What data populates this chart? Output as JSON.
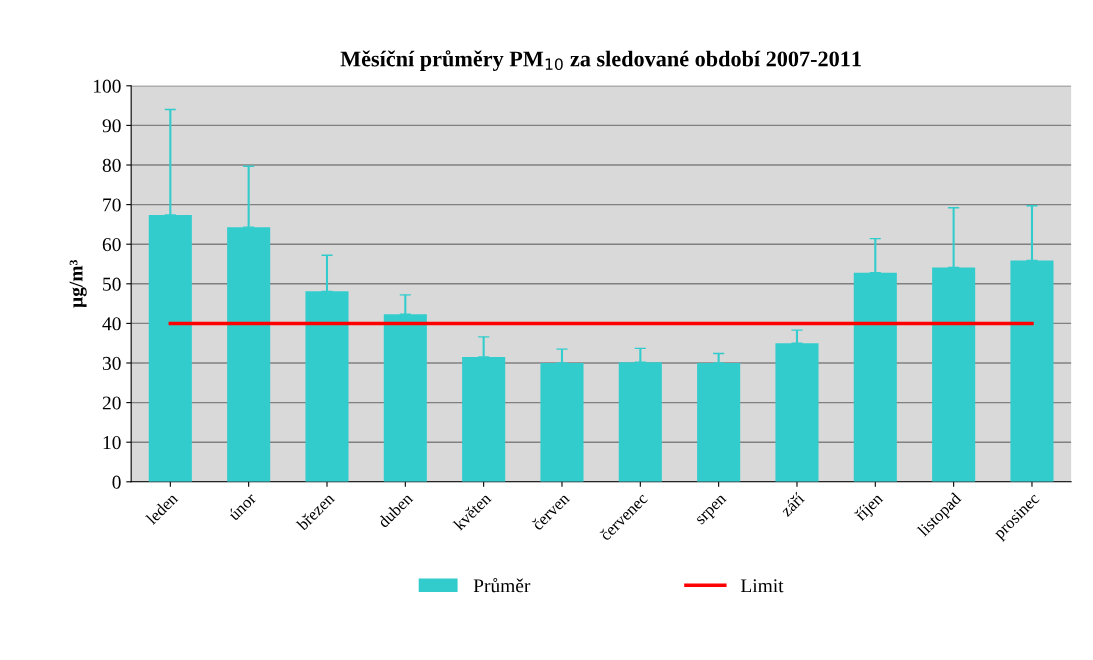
{
  "chart_data": {
    "type": "bar",
    "title": "Měsíční průměry PM$_{10}$ za sledované období 2007-2011",
    "ylabel": "µg/m³",
    "categories": [
      "leden",
      "únor",
      "březen",
      "duben",
      "květen",
      "červen",
      "červenec",
      "srpen",
      "září",
      "říjen",
      "listopad",
      "prosinec"
    ],
    "series": [
      {
        "name": "Průměr",
        "color": "#33cccc",
        "values": [
          67.4,
          64.3,
          48.1,
          42.3,
          31.5,
          30.0,
          30.2,
          30.0,
          35.0,
          52.8,
          54.1,
          55.9
        ],
        "errors": [
          [
            67.4,
            94
          ],
          [
            64.3,
            79.7
          ],
          [
            48.1,
            57.2
          ],
          [
            42.3,
            47.2
          ],
          [
            31.5,
            36.6
          ],
          [
            30.0,
            33.5
          ],
          [
            30.2,
            33.7
          ],
          [
            30.0,
            32.4
          ],
          [
            35.0,
            38.3
          ],
          [
            52.8,
            61.4
          ],
          [
            54.1,
            69.2
          ],
          [
            55.9,
            69.7
          ]
        ]
      },
      {
        "name": "Limit",
        "type": "line",
        "color": "#ff0000",
        "values": [
          40,
          40,
          40,
          40,
          40,
          40,
          40,
          40,
          40,
          40,
          40,
          40
        ]
      }
    ],
    "ylim": [
      0,
      100
    ],
    "yticks": [
      0,
      10,
      20,
      30,
      40,
      50,
      60,
      70,
      80,
      90,
      100
    ],
    "grid": "y",
    "legend": "bottom"
  }
}
